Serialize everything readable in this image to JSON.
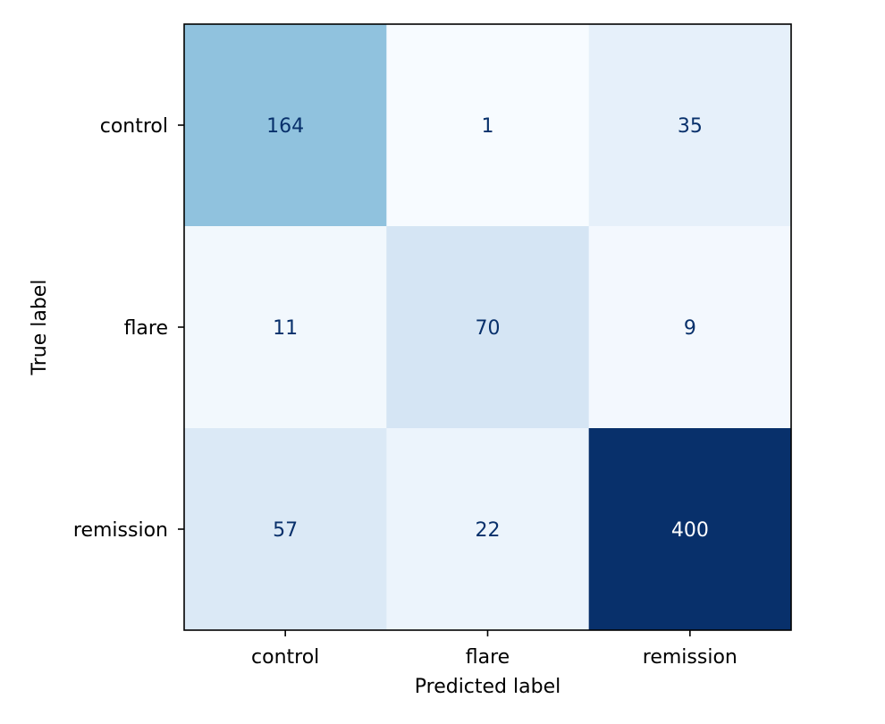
{
  "chart_data": {
    "type": "heatmap",
    "title": "",
    "xlabel": "Predicted label",
    "ylabel": "True label",
    "x_categories": [
      "control",
      "flare",
      "remission"
    ],
    "y_categories": [
      "control",
      "flare",
      "remission"
    ],
    "values": [
      [
        164,
        1,
        35
      ],
      [
        11,
        70,
        9
      ],
      [
        57,
        22,
        400
      ]
    ],
    "colormap": "Blues",
    "color_range": [
      1,
      400
    ],
    "text_color_dark": "#08306b",
    "text_color_light": "#ffffff",
    "grid": false,
    "colorbar": false
  }
}
